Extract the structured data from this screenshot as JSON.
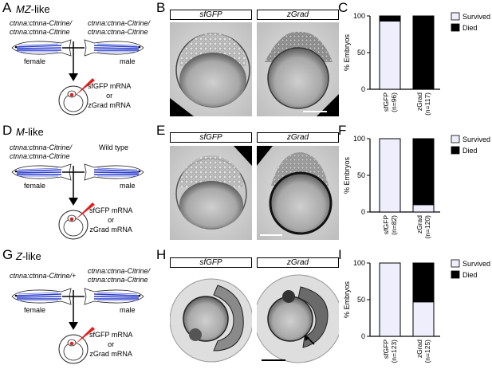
{
  "panel_labels": [
    "A",
    "B",
    "C",
    "D",
    "E",
    "F",
    "G",
    "H",
    "I"
  ],
  "rows": [
    {
      "condition_prefix": "MZ",
      "condition_suffix": "-like",
      "female_genotype": [
        "ctnna:ctnna-Citrine/",
        "ctnna:ctnna-Citrine"
      ],
      "male_genotype": [
        "ctnna:ctnna-Citrine/",
        "ctnna:ctnna-Citrine"
      ],
      "female_label": "female",
      "male_label": "male",
      "injection": [
        "sfGFP mRNA",
        "or",
        "zGrad mRNA"
      ],
      "image_headers": [
        "sfGFP",
        "zGrad"
      ]
    },
    {
      "condition_prefix": "M",
      "condition_suffix": "-like",
      "female_genotype": [
        "ctnna:ctnna-Citrine/",
        "ctnna:ctnna-Citrine"
      ],
      "male_genotype": [
        "Wild type"
      ],
      "female_label": "female",
      "male_label": "male",
      "injection": [
        "sfGFP mRNA",
        "or",
        "zGrad mRNA"
      ],
      "image_headers": [
        "sfGFP",
        "zGrad"
      ]
    },
    {
      "condition_prefix": "Z",
      "condition_suffix": "-like",
      "female_genotype": [
        "ctnna:ctnna-Citrine/+"
      ],
      "male_genotype": [
        "ctnna:ctnna-Citrine/",
        "ctnna:ctnna-Citrine"
      ],
      "female_label": "female",
      "male_label": "male",
      "injection": [
        "sfGFP mRNA",
        "or",
        "zGrad mRNA"
      ],
      "image_headers": [
        "sfGFP",
        "zGrad"
      ]
    }
  ],
  "chart_data": [
    {
      "type": "bar",
      "stacked": true,
      "ylabel": "% Embryos",
      "ylim": [
        0,
        100
      ],
      "yticks": [
        0,
        50,
        100
      ],
      "categories": [
        "sfGFP\n(n=96)",
        "zGrad\n(n=117)"
      ],
      "series": [
        {
          "name": "Survived",
          "color": "#eeeefc",
          "values": [
            93,
            0
          ]
        },
        {
          "name": "Died",
          "color": "#000000",
          "values": [
            7,
            100
          ]
        }
      ],
      "legend": "top-right"
    },
    {
      "type": "bar",
      "stacked": true,
      "ylabel": "% Embryos",
      "ylim": [
        0,
        100
      ],
      "yticks": [
        0,
        50,
        100
      ],
      "categories": [
        "sfGFP\n(n=82)",
        "zGrad\n(n=120)"
      ],
      "series": [
        {
          "name": "Survived",
          "color": "#eeeefc",
          "values": [
            100,
            10
          ]
        },
        {
          "name": "Died",
          "color": "#000000",
          "values": [
            0,
            90
          ]
        }
      ],
      "legend": "top-right"
    },
    {
      "type": "bar",
      "stacked": true,
      "ylabel": "% Embryos",
      "ylim": [
        0,
        100
      ],
      "yticks": [
        0,
        50,
        100
      ],
      "categories": [
        "sfGFP\n(n=123)",
        "zGrad\n(n=125)"
      ],
      "series": [
        {
          "name": "Survived",
          "color": "#eeeefc",
          "values": [
            100,
            47
          ]
        },
        {
          "name": "Died",
          "color": "#000000",
          "values": [
            0,
            53
          ]
        }
      ],
      "legend": "top-right"
    }
  ]
}
